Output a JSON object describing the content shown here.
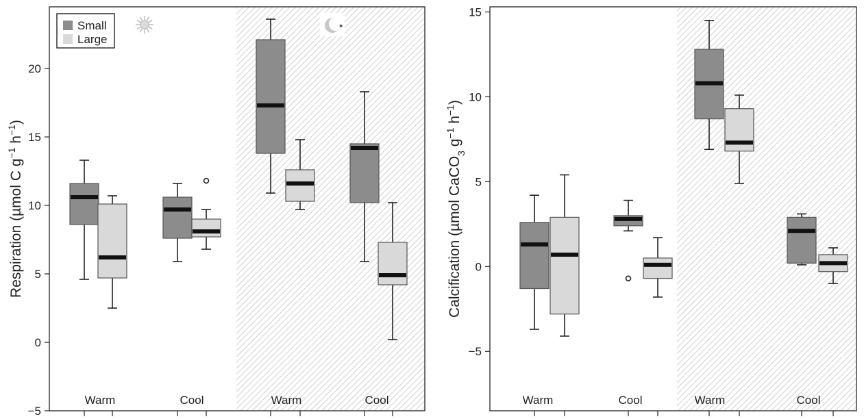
{
  "chart_data": [
    {
      "type": "box",
      "title": "",
      "ylabel": "Respiration (µmol C g⁻¹ h⁻¹)",
      "ylabel_parts": {
        "pre": "Respiration (µmol C g",
        "sup1": "−1",
        "mid": " h",
        "sup2": "−1",
        "post": ")"
      },
      "ylim": [
        -5,
        24.5
      ],
      "yticks": [
        -5,
        0,
        5,
        10,
        15,
        20
      ],
      "night_shaded_groups": [
        2,
        3
      ],
      "group_labels": [
        "Warm",
        "Cool",
        "Warm",
        "Cool"
      ],
      "legend": {
        "position": "top-left",
        "entries": [
          "Small",
          "Large"
        ]
      },
      "icons": [
        "sun-icon",
        "moon-icon"
      ],
      "series": [
        {
          "name": "Small",
          "color": "#8c8c8c",
          "boxes": [
            {
              "group": "Warm",
              "whisker_low": 4.6,
              "q1": 8.6,
              "median": 10.6,
              "q3": 11.6,
              "whisker_high": 13.3,
              "outliers": []
            },
            {
              "group": "Cool",
              "whisker_low": 5.9,
              "q1": 7.6,
              "median": 9.7,
              "q3": 10.6,
              "whisker_high": 11.6,
              "outliers": []
            },
            {
              "group": "Warm",
              "whisker_low": 10.9,
              "q1": 13.8,
              "median": 17.3,
              "q3": 22.1,
              "whisker_high": 23.6,
              "outliers": []
            },
            {
              "group": "Cool",
              "whisker_low": 5.9,
              "q1": 10.2,
              "median": 14.2,
              "q3": 14.5,
              "whisker_high": 18.3,
              "outliers": []
            }
          ]
        },
        {
          "name": "Large",
          "color": "#d9d9d9",
          "boxes": [
            {
              "group": "Warm",
              "whisker_low": 2.5,
              "q1": 4.7,
              "median": 6.2,
              "q3": 10.1,
              "whisker_high": 10.7,
              "outliers": []
            },
            {
              "group": "Cool",
              "whisker_low": 6.8,
              "q1": 7.7,
              "median": 8.1,
              "q3": 9.0,
              "whisker_high": 9.7,
              "outliers": [
                11.8
              ]
            },
            {
              "group": "Warm",
              "whisker_low": 9.7,
              "q1": 10.3,
              "median": 11.6,
              "q3": 12.6,
              "whisker_high": 14.8,
              "outliers": []
            },
            {
              "group": "Cool",
              "whisker_low": 0.2,
              "q1": 4.2,
              "median": 4.9,
              "q3": 7.3,
              "whisker_high": 10.2,
              "outliers": []
            }
          ]
        }
      ]
    },
    {
      "type": "box",
      "title": "",
      "ylabel": "Calcification (µmol CaCO₃ g⁻¹ h⁻¹)",
      "ylabel_parts": {
        "pre": "Calcification (µmol CaCO",
        "sub": "3",
        "mid0": " g",
        "sup1": "−1",
        "mid": " h",
        "sup2": "−1",
        "post": ")"
      },
      "ylim": [
        -8.5,
        15.3
      ],
      "yticks": [
        -5,
        0,
        5,
        10,
        15
      ],
      "night_shaded_groups": [
        2,
        3
      ],
      "group_labels": [
        "Warm",
        "Cool",
        "Warm",
        "Cool"
      ],
      "series": [
        {
          "name": "Small",
          "color": "#8c8c8c",
          "boxes": [
            {
              "group": "Warm",
              "whisker_low": -3.7,
              "q1": -1.3,
              "median": 1.3,
              "q3": 2.6,
              "whisker_high": 4.2,
              "outliers": []
            },
            {
              "group": "Cool",
              "whisker_low": 2.1,
              "q1": 2.4,
              "median": 2.8,
              "q3": 3.0,
              "whisker_high": 3.9,
              "outliers": [
                -0.7
              ]
            },
            {
              "group": "Warm",
              "whisker_low": 6.9,
              "q1": 8.7,
              "median": 10.8,
              "q3": 12.8,
              "whisker_high": 14.5,
              "outliers": []
            },
            {
              "group": "Cool",
              "whisker_low": 0.1,
              "q1": 0.2,
              "median": 2.1,
              "q3": 2.9,
              "whisker_high": 3.1,
              "outliers": []
            }
          ]
        },
        {
          "name": "Large",
          "color": "#d9d9d9",
          "boxes": [
            {
              "group": "Warm",
              "whisker_low": -4.1,
              "q1": -2.8,
              "median": 0.7,
              "q3": 2.9,
              "whisker_high": 5.4,
              "outliers": []
            },
            {
              "group": "Cool",
              "whisker_low": -1.8,
              "q1": -0.7,
              "median": 0.1,
              "q3": 0.5,
              "whisker_high": 1.7,
              "outliers": []
            },
            {
              "group": "Warm",
              "whisker_low": 4.9,
              "q1": 6.8,
              "median": 7.3,
              "q3": 9.3,
              "whisker_high": 10.1,
              "outliers": []
            },
            {
              "group": "Cool",
              "whisker_low": -1.0,
              "q1": -0.3,
              "median": 0.2,
              "q3": 0.7,
              "whisker_high": 1.1,
              "outliers": []
            }
          ]
        }
      ]
    }
  ]
}
